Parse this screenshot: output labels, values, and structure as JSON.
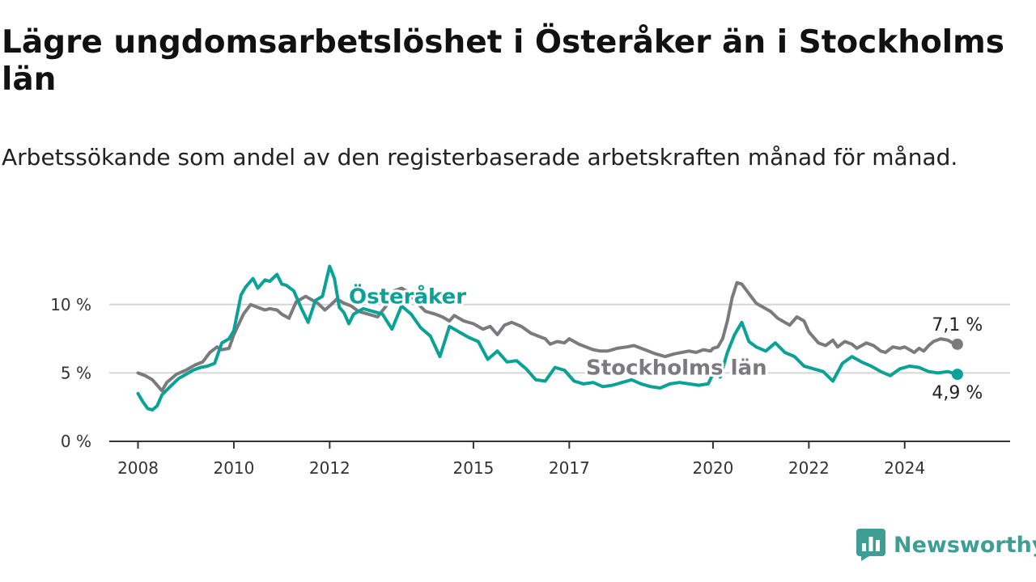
{
  "title": "Lägre ungdomsarbetslöshet i Österåker än i Stockholms län",
  "subtitle": "Arbetssökande som andel av den registerbaserade arbetskraften månad för månad.",
  "brand": {
    "name": "Newsworthy",
    "color": "#3f9e93"
  },
  "chart_data": {
    "type": "line",
    "ylim": [
      0,
      13
    ],
    "yticks": [
      {
        "value": 0,
        "label": "0 %"
      },
      {
        "value": 5,
        "label": "5 %"
      },
      {
        "value": 10,
        "label": "10 %"
      }
    ],
    "xlim": [
      2007.4,
      2026.2
    ],
    "xticks": [
      {
        "value": 2008,
        "label": "2008"
      },
      {
        "value": 2010,
        "label": "2010"
      },
      {
        "value": 2012,
        "label": "2012"
      },
      {
        "value": 2015,
        "label": "2015"
      },
      {
        "value": 2017,
        "label": "2017"
      },
      {
        "value": 2020,
        "label": "2020"
      },
      {
        "value": 2022,
        "label": "2022"
      },
      {
        "value": 2024,
        "label": "2024"
      }
    ],
    "grid": true,
    "series": [
      {
        "name": "Stockholms län",
        "color": "#7a7a7f",
        "end_label": "7,1 %",
        "x": [
          2008.0,
          2008.15,
          2008.3,
          2008.4,
          2008.5,
          2008.6,
          2008.8,
          2009.0,
          2009.2,
          2009.35,
          2009.5,
          2009.65,
          2009.75,
          2009.9,
          2010.0,
          2010.2,
          2010.35,
          2010.5,
          2010.65,
          2010.75,
          2010.9,
          2011.0,
          2011.15,
          2011.3,
          2011.5,
          2011.6,
          2011.75,
          2011.9,
          2012.0,
          2012.15,
          2012.3,
          2012.45,
          2012.6,
          2012.8,
          2013.0,
          2013.2,
          2013.35,
          2013.5,
          2013.65,
          2013.8,
          2014.0,
          2014.2,
          2014.35,
          2014.5,
          2014.6,
          2014.8,
          2015.0,
          2015.2,
          2015.35,
          2015.5,
          2015.65,
          2015.8,
          2016.0,
          2016.2,
          2016.35,
          2016.5,
          2016.6,
          2016.75,
          2016.9,
          2017.0,
          2017.2,
          2017.35,
          2017.5,
          2017.65,
          2017.8,
          2018.0,
          2018.2,
          2018.35,
          2018.5,
          2018.65,
          2018.8,
          2019.0,
          2019.2,
          2019.35,
          2019.5,
          2019.65,
          2019.8,
          2019.95,
          2020.0,
          2020.1,
          2020.2,
          2020.3,
          2020.4,
          2020.5,
          2020.6,
          2020.75,
          2020.9,
          2021.0,
          2021.2,
          2021.35,
          2021.5,
          2021.6,
          2021.75,
          2021.9,
          2022.0,
          2022.2,
          2022.35,
          2022.5,
          2022.6,
          2022.75,
          2022.9,
          2023.0,
          2023.2,
          2023.35,
          2023.5,
          2023.6,
          2023.75,
          2023.9,
          2024.0,
          2024.2,
          2024.3,
          2024.4,
          2024.5,
          2024.6,
          2024.75,
          2024.9,
          2025.0,
          2025.1
        ],
        "y": [
          5.0,
          4.8,
          4.5,
          4.1,
          3.7,
          4.3,
          4.9,
          5.2,
          5.6,
          5.8,
          6.5,
          6.9,
          6.7,
          6.8,
          7.8,
          9.3,
          10.0,
          9.8,
          9.6,
          9.7,
          9.6,
          9.3,
          9.0,
          10.2,
          10.6,
          10.4,
          10.1,
          9.6,
          9.9,
          10.4,
          10.1,
          9.9,
          9.5,
          9.3,
          9.1,
          10.0,
          11.0,
          11.2,
          10.9,
          10.2,
          9.5,
          9.3,
          9.1,
          8.8,
          9.2,
          8.8,
          8.6,
          8.2,
          8.4,
          7.8,
          8.5,
          8.7,
          8.4,
          7.9,
          7.7,
          7.5,
          7.1,
          7.3,
          7.2,
          7.5,
          7.1,
          6.9,
          6.7,
          6.6,
          6.6,
          6.8,
          6.9,
          7.0,
          6.8,
          6.6,
          6.4,
          6.2,
          6.4,
          6.5,
          6.6,
          6.5,
          6.7,
          6.6,
          6.8,
          6.9,
          7.5,
          8.8,
          10.5,
          11.6,
          11.5,
          10.8,
          10.1,
          9.9,
          9.5,
          9.0,
          8.7,
          8.5,
          9.1,
          8.8,
          8.0,
          7.2,
          7.0,
          7.4,
          6.9,
          7.3,
          7.1,
          6.8,
          7.2,
          7.0,
          6.6,
          6.5,
          6.9,
          6.8,
          6.9,
          6.5,
          6.8,
          6.6,
          7.0,
          7.3,
          7.5,
          7.4,
          7.2,
          7.1
        ]
      },
      {
        "name": "Österåker",
        "color": "#0aa196",
        "end_label": "4,9 %",
        "x": [
          2008.0,
          2008.1,
          2008.2,
          2008.3,
          2008.4,
          2008.5,
          2008.7,
          2008.85,
          2009.0,
          2009.15,
          2009.3,
          2009.45,
          2009.6,
          2009.75,
          2009.9,
          2010.0,
          2010.15,
          2010.25,
          2010.4,
          2010.5,
          2010.65,
          2010.75,
          2010.9,
          2011.0,
          2011.1,
          2011.25,
          2011.4,
          2011.55,
          2011.7,
          2011.85,
          2012.0,
          2012.1,
          2012.2,
          2012.3,
          2012.4,
          2012.5,
          2012.7,
          2012.9,
          2013.1,
          2013.3,
          2013.5,
          2013.7,
          2013.9,
          2014.1,
          2014.3,
          2014.5,
          2014.7,
          2014.9,
          2015.1,
          2015.3,
          2015.5,
          2015.7,
          2015.9,
          2016.1,
          2016.3,
          2016.5,
          2016.7,
          2016.9,
          2017.1,
          2017.3,
          2017.5,
          2017.7,
          2017.9,
          2018.1,
          2018.3,
          2018.5,
          2018.7,
          2018.9,
          2019.1,
          2019.3,
          2019.5,
          2019.7,
          2019.9,
          2020.05,
          2020.15,
          2020.3,
          2020.45,
          2020.6,
          2020.75,
          2020.9,
          2021.1,
          2021.3,
          2021.5,
          2021.7,
          2021.9,
          2022.1,
          2022.3,
          2022.5,
          2022.7,
          2022.9,
          2023.1,
          2023.3,
          2023.5,
          2023.7,
          2023.9,
          2024.1,
          2024.3,
          2024.5,
          2024.7,
          2024.9,
          2025.0,
          2025.1
        ],
        "y": [
          3.5,
          2.9,
          2.4,
          2.3,
          2.6,
          3.4,
          4.1,
          4.6,
          4.9,
          5.2,
          5.4,
          5.5,
          5.7,
          7.2,
          7.5,
          8.1,
          10.7,
          11.3,
          11.9,
          11.2,
          11.8,
          11.7,
          12.2,
          11.5,
          11.4,
          11.0,
          9.8,
          8.7,
          10.3,
          10.6,
          12.8,
          11.9,
          9.8,
          9.4,
          8.6,
          9.3,
          9.7,
          9.5,
          9.3,
          8.2,
          9.9,
          9.3,
          8.3,
          7.7,
          6.2,
          8.4,
          8.0,
          7.6,
          7.3,
          6.0,
          6.6,
          5.8,
          5.9,
          5.3,
          4.5,
          4.4,
          5.4,
          5.2,
          4.4,
          4.2,
          4.3,
          4.0,
          4.1,
          4.3,
          4.5,
          4.2,
          4.0,
          3.9,
          4.2,
          4.3,
          4.2,
          4.1,
          4.2,
          5.3,
          4.7,
          6.5,
          7.8,
          8.7,
          7.3,
          6.9,
          6.6,
          7.2,
          6.5,
          6.2,
          5.5,
          5.3,
          5.1,
          4.4,
          5.7,
          6.2,
          5.8,
          5.5,
          5.1,
          4.8,
          5.3,
          5.5,
          5.4,
          5.1,
          5.0,
          5.1,
          5.0,
          4.9
        ]
      }
    ]
  }
}
